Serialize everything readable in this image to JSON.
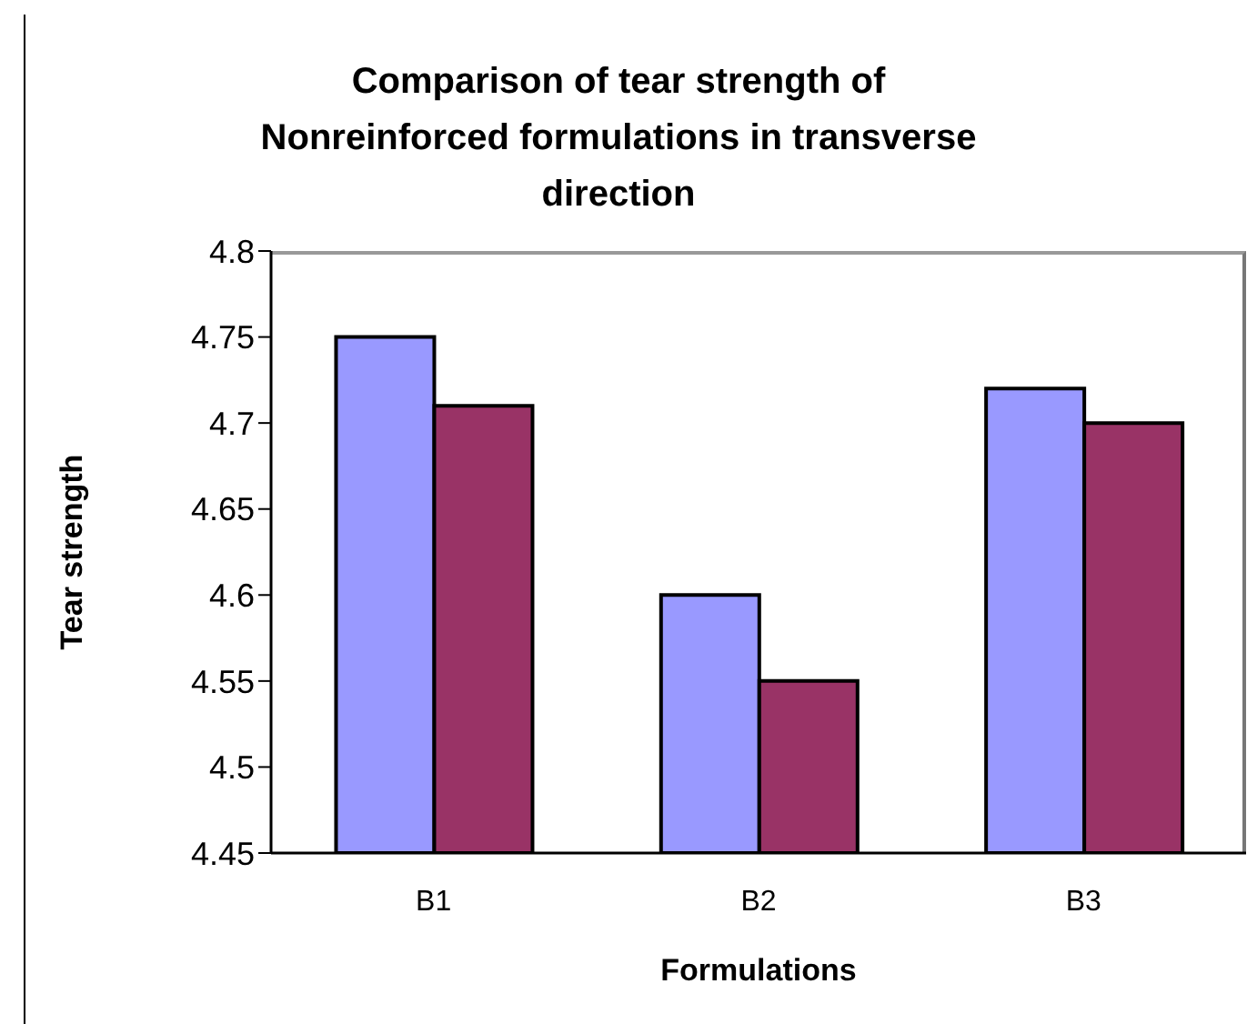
{
  "chart_data": {
    "type": "bar",
    "title": "Comparison of tear strength of Nonreinforced formulations in transverse direction",
    "xlabel": "Formulations",
    "ylabel": "Tear strength",
    "categories": [
      "B1",
      "B2",
      "B3"
    ],
    "series": [
      {
        "color": "#9999ff",
        "values": [
          4.75,
          4.6,
          4.72
        ]
      },
      {
        "color": "#993366",
        "values": [
          4.71,
          4.55,
          4.7
        ]
      }
    ],
    "ylim": [
      4.45,
      4.8
    ],
    "yticks": [
      4.45,
      4.5,
      4.55,
      4.6,
      4.65,
      4.7,
      4.75,
      4.8
    ],
    "grid": false,
    "legend": false
  }
}
